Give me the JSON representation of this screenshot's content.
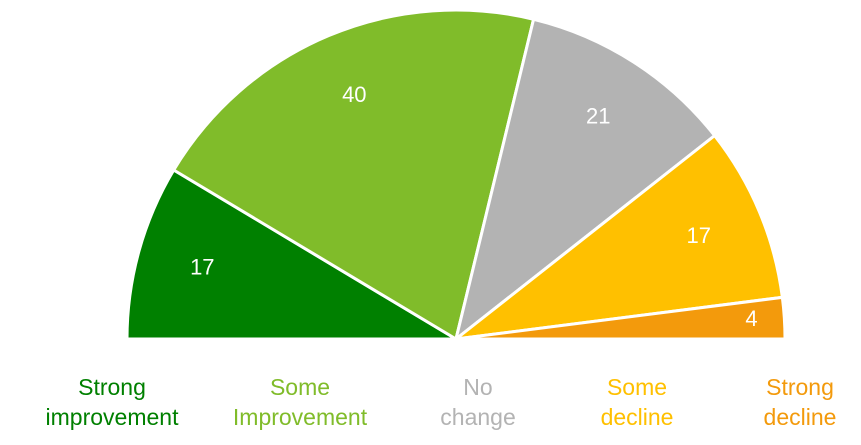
{
  "chart_data": {
    "type": "semi-pie",
    "categories": [
      "Strong improvement",
      "Some Improvement",
      "No change",
      "Some decline",
      "Strong decline"
    ],
    "values": [
      17,
      40,
      21,
      17,
      4
    ],
    "colors": [
      "#008000",
      "#80bc2a",
      "#b3b3b3",
      "#ffc000",
      "#f39a0c"
    ]
  }
}
